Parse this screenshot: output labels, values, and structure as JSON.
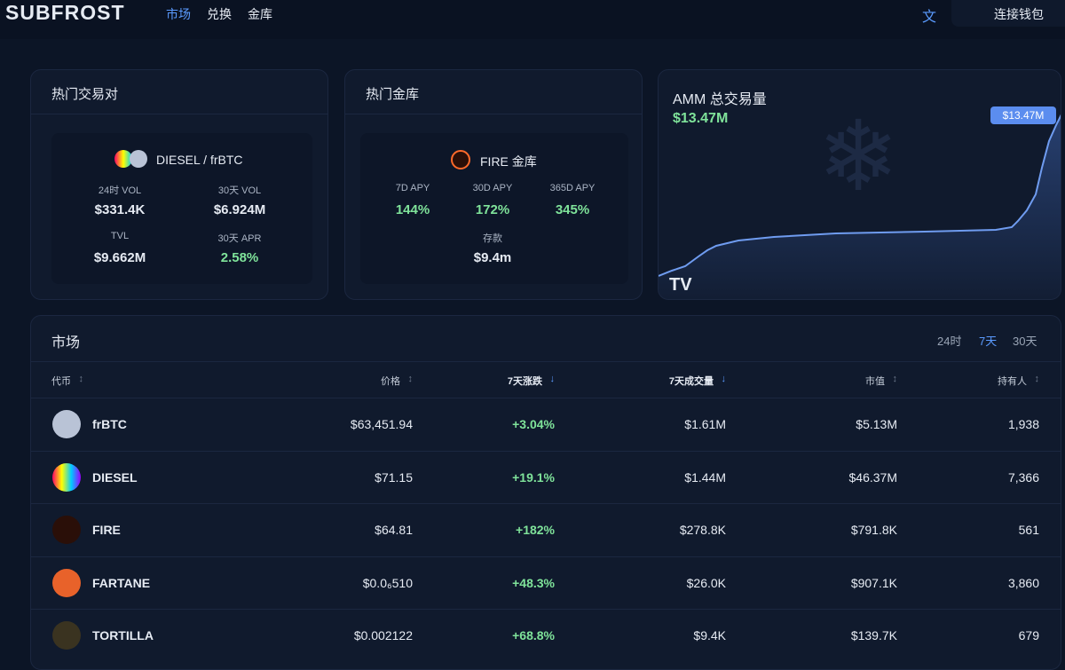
{
  "header": {
    "logo": "SUBFROST",
    "nav": [
      "市场",
      "兑换",
      "金库"
    ],
    "lang": "文",
    "connect": "连接钱包"
  },
  "hot_pair": {
    "title": "热门交易对",
    "pair": "DIESEL / frBTC",
    "stats": [
      {
        "label": "24时 VOL",
        "value": "$331.4K"
      },
      {
        "label": "30天 VOL",
        "value": "$6.924M"
      },
      {
        "label": "TVL",
        "value": "$9.662M"
      },
      {
        "label": "30天 APR",
        "value": "2.58%"
      }
    ]
  },
  "hot_vault": {
    "title": "热门金库",
    "name": "FIRE 金库",
    "stats": [
      {
        "label": "7D APY",
        "value": "144%"
      },
      {
        "label": "30D APY",
        "value": "172%"
      },
      {
        "label": "365D APY",
        "value": "345%"
      },
      {
        "label": "存款",
        "value": "$9.4m"
      }
    ]
  },
  "amm": {
    "title": "AMM 总交易量",
    "value": "$13.47M",
    "badge": "$13.47M"
  },
  "market": {
    "title": "市场",
    "ranges": [
      "24时",
      "7天",
      "30天"
    ],
    "columns": [
      "代币",
      "价格",
      "7天涨跌",
      "7天成交量",
      "市值",
      "持有人"
    ],
    "rows": [
      [
        "frBTC",
        "$63,451.94",
        "+3.04%",
        "$1.61M",
        "$5.13M",
        "1,938"
      ],
      [
        "DIESEL",
        "$71.15",
        "+19.1%",
        "$1.44M",
        "$46.37M",
        "7,366"
      ],
      [
        "FIRE",
        "$64.81",
        "+182%",
        "$278.8K",
        "$791.8K",
        "561"
      ],
      [
        "FARTANE",
        "$0.0₆510",
        "+48.3%",
        "$26.0K",
        "$907.1K",
        "3,860"
      ],
      [
        "TORTILLA",
        "$0.002122",
        "+68.8%",
        "$9.4K",
        "$139.7K",
        "679"
      ]
    ]
  }
}
